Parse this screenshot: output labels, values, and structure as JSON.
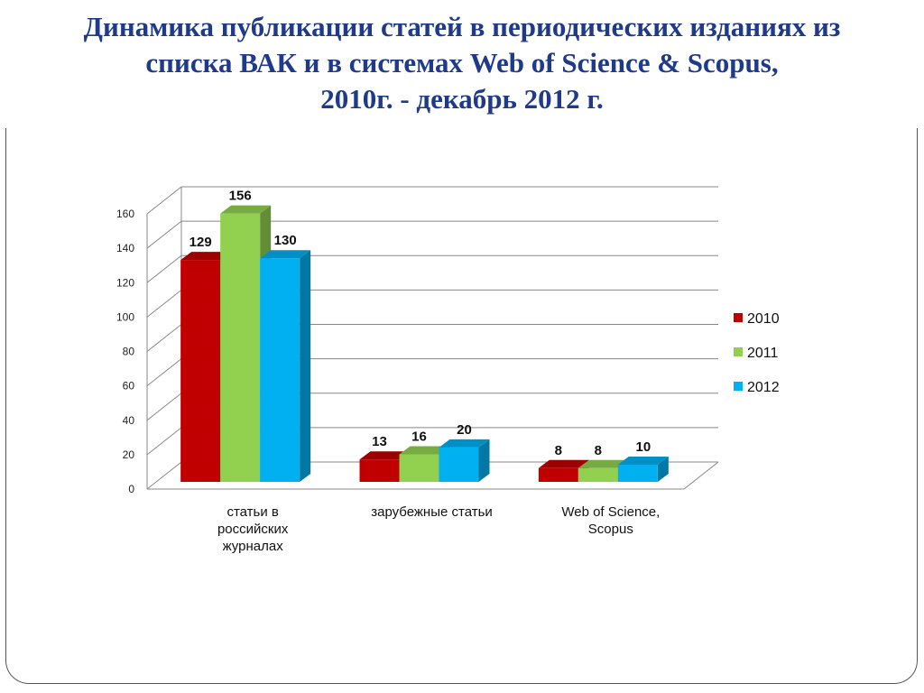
{
  "title": {
    "line1": "Динамика публикации статей в периодических изданиях из",
    "line2": "списка ВАК и в системах Web of Science & Scopus,",
    "line3": "2010г.  - декабрь 2012 г."
  },
  "chart_data": {
    "type": "bar",
    "style": "3d-clustered-column",
    "categories": [
      [
        "статьи в",
        "российских",
        "журналах"
      ],
      [
        "зарубежные статьи"
      ],
      [
        "Web of Science,",
        "Scopus"
      ]
    ],
    "series": [
      {
        "name": "2010",
        "color": "#c00000",
        "values": [
          129,
          13,
          8
        ]
      },
      {
        "name": "2011",
        "color": "#92d050",
        "values": [
          156,
          16,
          8
        ]
      },
      {
        "name": "2012",
        "color": "#00b0f0",
        "values": [
          130,
          20,
          10
        ]
      }
    ],
    "ylim": [
      0,
      160
    ],
    "yticks": [
      0,
      20,
      40,
      60,
      80,
      100,
      120,
      140,
      160
    ],
    "grid": true,
    "legend": "right",
    "data_labels": true
  }
}
